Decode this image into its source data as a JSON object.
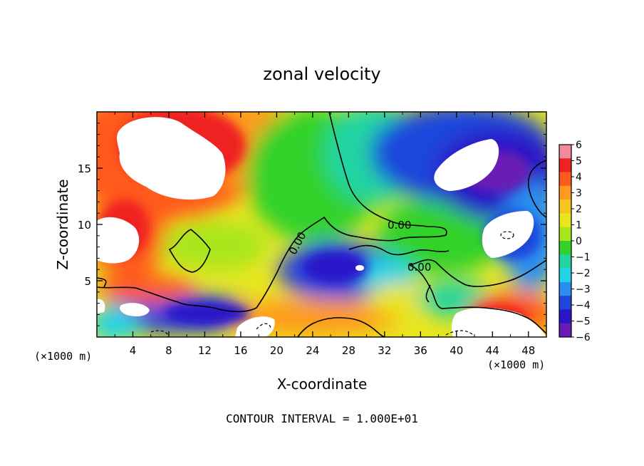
{
  "chart_data": {
    "type": "heatmap",
    "title": "zonal velocity",
    "xlabel": "X-coordinate",
    "ylabel": "Z-coordinate",
    "x_unit": "(×1000 m)",
    "z_unit": "(×1000 m)",
    "xlim": [
      0,
      50
    ],
    "ylim": [
      0,
      20
    ],
    "x_ticks": [
      "4",
      "8",
      "12",
      "16",
      "20",
      "24",
      "28",
      "32",
      "36",
      "40",
      "44",
      "48"
    ],
    "y_ticks": [
      "5",
      "10",
      "15"
    ],
    "colorbar": {
      "min": -6,
      "max": 6,
      "labels": [
        "6",
        "5",
        "4",
        "3",
        "2",
        "1",
        "0",
        "−1",
        "−2",
        "−3",
        "−4",
        "−5",
        "−6"
      ],
      "colors": [
        "#f08a9c",
        "#ef2222",
        "#ff5a1e",
        "#ff9a1e",
        "#f5c71e",
        "#e9e61e",
        "#a8e61e",
        "#32d22a",
        "#22d4a2",
        "#22d4e8",
        "#2a8ef0",
        "#1e46dc",
        "#2a14c8",
        "#6a1ab4"
      ]
    },
    "contour_labels": [
      "0.00",
      "0.00",
      "0.00"
    ],
    "footer": "CONTOUR INTERVAL = 1.000E+01"
  }
}
